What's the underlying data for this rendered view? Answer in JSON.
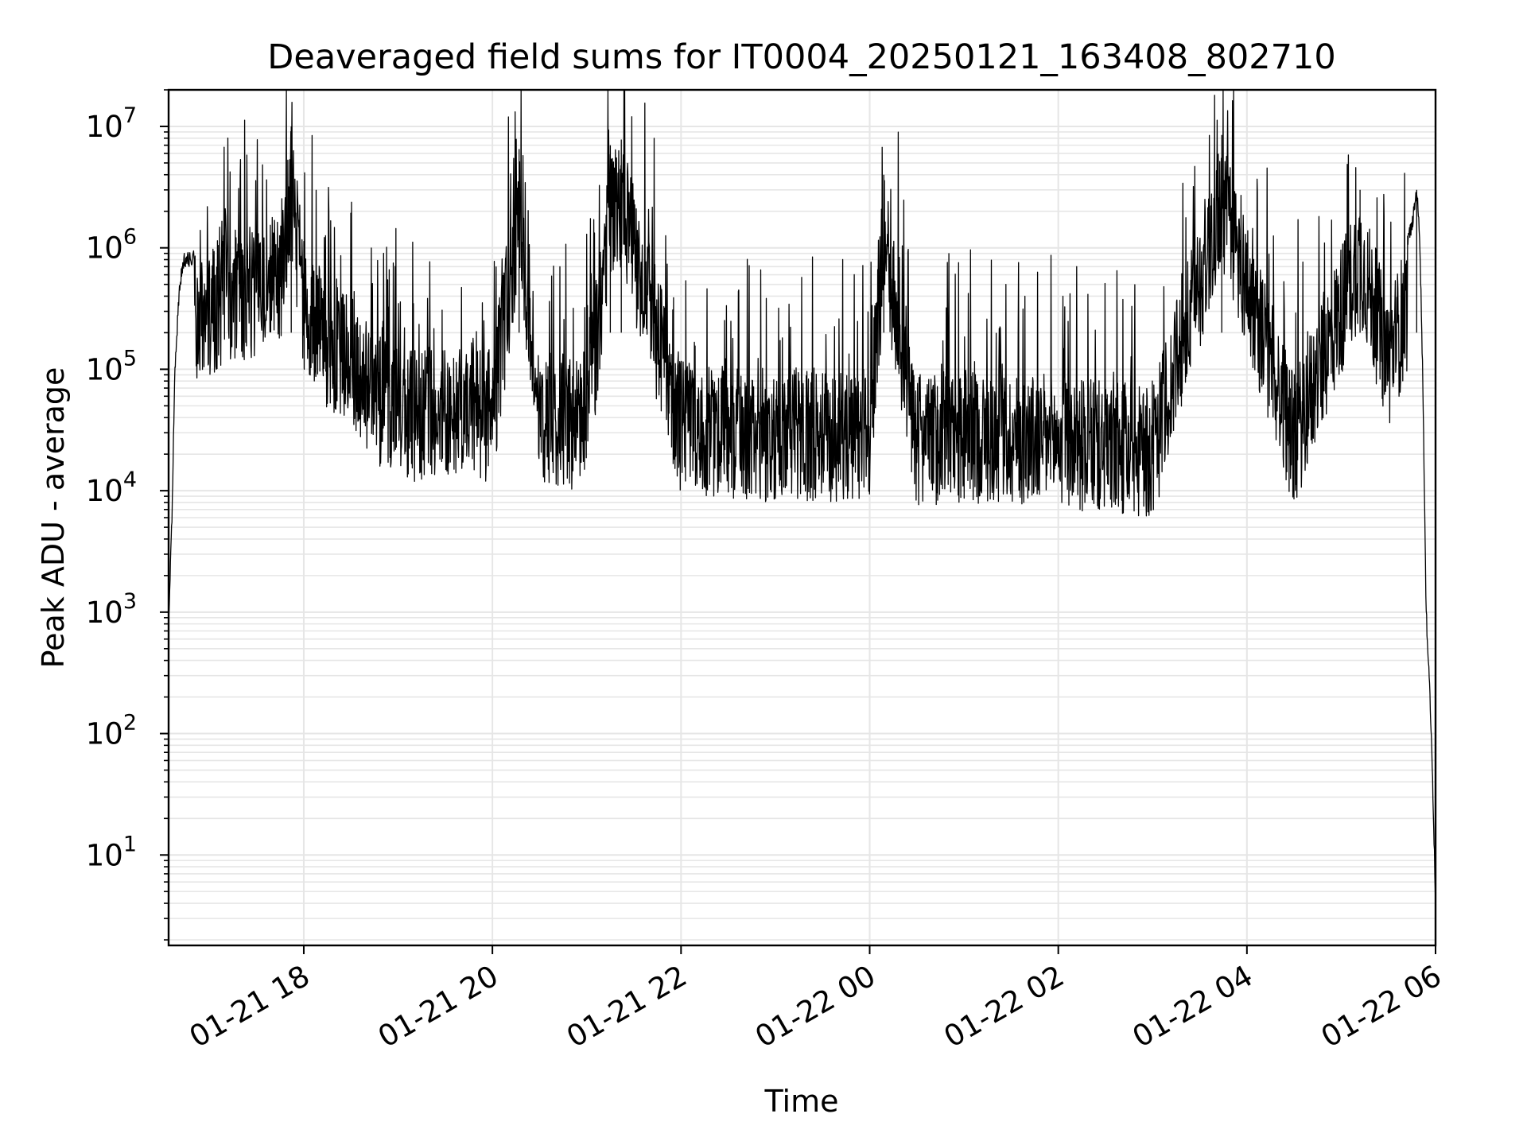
{
  "chart_data": {
    "type": "line",
    "title": "Deaveraged field sums for IT0004_20250121_163408_802710",
    "xlabel": "Time",
    "ylabel": "Peak ADU - average",
    "yscale": "log",
    "ylim": [
      1.8,
      20000000
    ],
    "xlim": [
      "2025-01-21 16:34",
      "2025-01-22 06:00"
    ],
    "grid": true,
    "x_ticks": [
      "01-21 18",
      "01-21 20",
      "01-21 22",
      "01-22 00",
      "01-22 02",
      "01-22 04",
      "01-22 06"
    ],
    "y_ticks": [
      {
        "base": "10",
        "exp": "1",
        "value": 10
      },
      {
        "base": "10",
        "exp": "2",
        "value": 100
      },
      {
        "base": "10",
        "exp": "3",
        "value": 1000
      },
      {
        "base": "10",
        "exp": "4",
        "value": 10000
      },
      {
        "base": "10",
        "exp": "5",
        "value": 100000
      },
      {
        "base": "10",
        "exp": "6",
        "value": 1000000
      },
      {
        "base": "10",
        "exp": "7",
        "value": 10000000
      }
    ],
    "line_color": "#000000",
    "grid_color": "#e6e6e6",
    "series": [
      {
        "x": [
          "2025-01-21 16:34",
          "2025-01-21 16:36",
          "2025-01-21 16:38",
          "2025-01-21 16:41",
          "2025-01-21 16:44",
          "2025-01-21 16:48",
          "2025-01-21 16:52",
          "2025-01-21 17:00",
          "2025-01-21 17:15",
          "2025-01-21 17:30",
          "2025-01-21 17:45",
          "2025-01-21 17:52",
          "2025-01-21 18:00",
          "2025-01-21 18:05",
          "2025-01-21 18:15",
          "2025-01-21 18:30",
          "2025-01-21 18:45",
          "2025-01-21 19:00",
          "2025-01-21 19:15",
          "2025-01-21 19:30",
          "2025-01-21 20:00",
          "2025-01-21 20:17",
          "2025-01-21 20:30",
          "2025-01-21 21:00",
          "2025-01-21 21:15",
          "2025-01-21 21:22",
          "2025-01-21 22:00",
          "2025-01-21 23:00",
          "2025-01-22 00:00",
          "2025-01-22 00:09",
          "2025-01-22 00:30",
          "2025-01-22 01:00",
          "2025-01-22 02:00",
          "2025-01-22 03:00",
          "2025-01-22 03:44",
          "2025-01-22 04:30",
          "2025-01-22 05:12",
          "2025-01-22 05:30",
          "2025-01-22 05:40",
          "2025-01-22 05:45",
          "2025-01-22 05:48",
          "2025-01-22 05:50",
          "2025-01-22 05:52",
          "2025-01-22 05:54",
          "2025-01-22 05:56",
          "2025-01-22 05:58",
          "2025-01-22 06:00"
        ],
        "y": [
          800,
          5000,
          100000,
          500000,
          800000,
          800000,
          900000,
          1000000,
          1500000,
          1500000,
          2000000,
          10000000,
          1200000,
          900000,
          600000,
          400000,
          200000,
          150000,
          150000,
          150000,
          150000,
          6500000,
          150000,
          120000,
          7000000,
          7800000,
          120000,
          100000,
          100000,
          4000000,
          90000,
          100000,
          90000,
          70000,
          8500000,
          90000,
          3000000,
          400000,
          1000000,
          1500000,
          3000000,
          1200000,
          70000,
          1000,
          300,
          50,
          4
        ]
      }
    ]
  }
}
